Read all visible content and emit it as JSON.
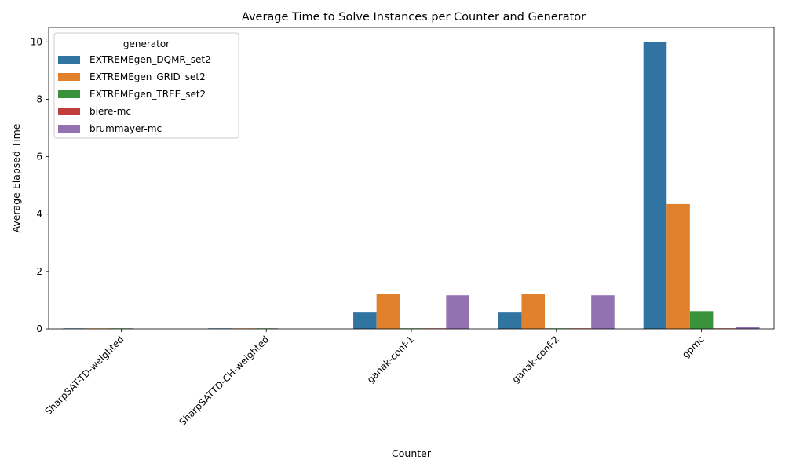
{
  "chart_data": {
    "type": "bar",
    "title": "Average Time to Solve Instances per Counter and Generator",
    "xlabel": "Counter",
    "ylabel": "Average Elapsed Time",
    "ylim": [
      0,
      10.5
    ],
    "yticks": [
      0,
      2,
      4,
      6,
      8,
      10
    ],
    "grid": false,
    "legend": {
      "title": "generator",
      "placement": "top-left"
    },
    "categories": [
      "SharpSAT-TD-weighted",
      "SharpSATTD-CH-weighted",
      "ganak-conf-1",
      "ganak-conf-2",
      "gpmc"
    ],
    "series": [
      {
        "name": "EXTREMEgen_DQMR_set2",
        "color": "#3274a1",
        "values": [
          0.02,
          0.02,
          0.57,
          0.57,
          10.0
        ]
      },
      {
        "name": "EXTREMEgen_GRID_set2",
        "color": "#e1812c",
        "values": [
          0.02,
          0.02,
          1.22,
          1.22,
          4.35
        ]
      },
      {
        "name": "EXTREMEgen_TREE_set2",
        "color": "#3a923a",
        "values": [
          0.02,
          0.02,
          0.02,
          0.02,
          0.62
        ]
      },
      {
        "name": "biere-mc",
        "color": "#c03d3e",
        "values": [
          0.0,
          0.0,
          0.02,
          0.02,
          0.02
        ]
      },
      {
        "name": "brummayer-mc",
        "color": "#9372b2",
        "values": [
          0.0,
          0.0,
          1.17,
          1.17,
          0.08
        ]
      }
    ]
  }
}
